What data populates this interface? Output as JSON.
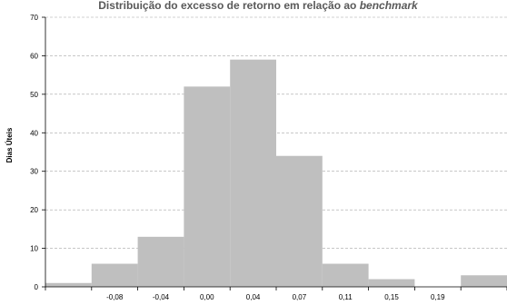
{
  "chart_data": {
    "type": "bar",
    "title_prefix": "Distribuição do excesso de retorno em relação ao ",
    "title_italic": "benchmark",
    "xlabel": "",
    "ylabel": "Dias Úteis",
    "ylim": [
      0,
      70
    ],
    "yticks": [
      0,
      10,
      20,
      30,
      40,
      50,
      60,
      70
    ],
    "xtick_labels": [
      "-0,08",
      "-0,04",
      "0,00",
      "0,04",
      "0,07",
      "0,11",
      "0,15",
      "0,19"
    ],
    "bins": [
      "< -0,08",
      "-0,08",
      "-0,04",
      "0,00",
      "0,04",
      "0,07",
      "0,11",
      "0,15",
      "0,19",
      "> 0,19"
    ],
    "values": [
      1,
      6,
      13,
      52,
      59,
      34,
      6,
      2,
      0,
      3
    ],
    "grid": true,
    "colors": {
      "bar": "#bfbfbf",
      "grid": "#a6a6a6",
      "axis": "#000000",
      "title": "#595959"
    }
  }
}
